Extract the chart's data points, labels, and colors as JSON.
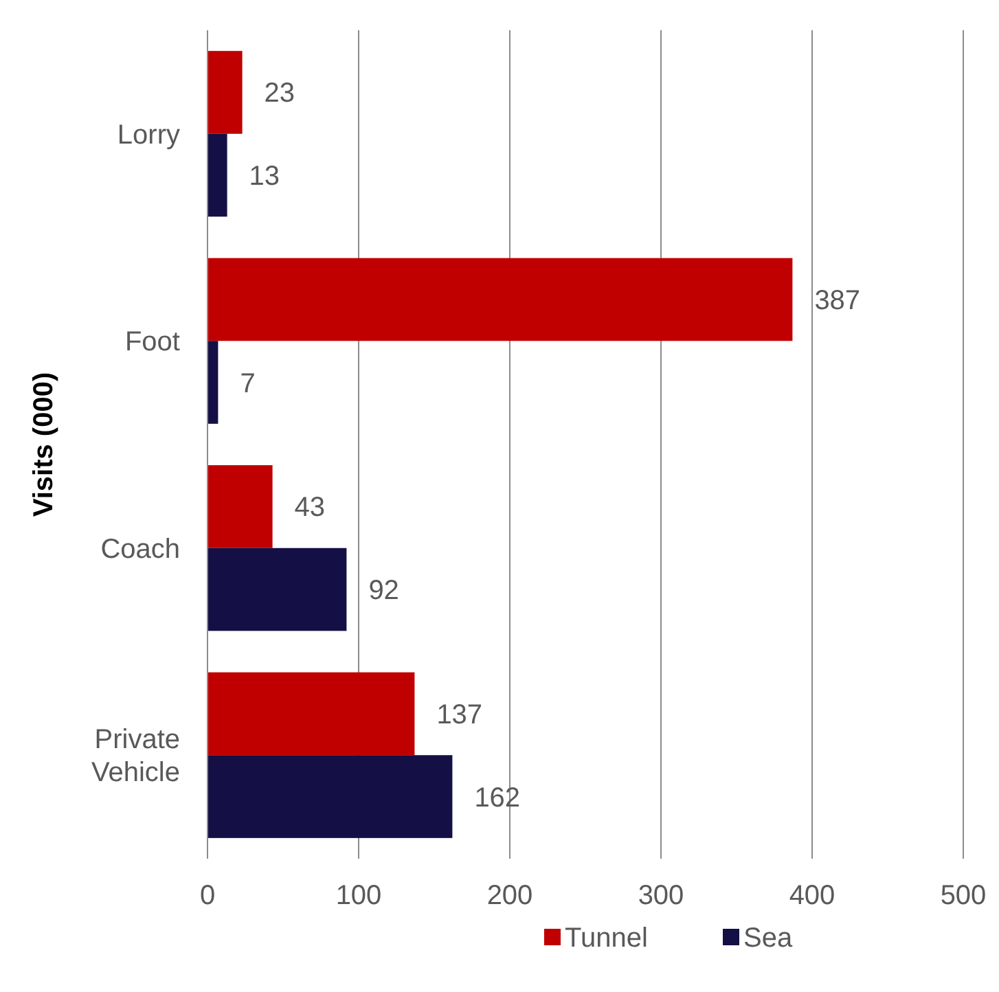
{
  "chart_data": {
    "type": "bar",
    "orientation": "horizontal",
    "ylabel": "Visits (000)",
    "categories": [
      "Lorry",
      "Foot",
      "Coach",
      "Private Vehicle"
    ],
    "series": [
      {
        "name": "Tunnel",
        "color": "#c00000",
        "values": [
          23,
          387,
          43,
          137
        ]
      },
      {
        "name": "Sea",
        "color": "#140f45",
        "values": [
          13,
          7,
          92,
          162
        ]
      }
    ],
    "xlim": [
      0,
      500
    ],
    "xticks": [
      0,
      100,
      200,
      300,
      400,
      500
    ],
    "grid": "x",
    "data_labels": true,
    "legend": "bottom"
  }
}
